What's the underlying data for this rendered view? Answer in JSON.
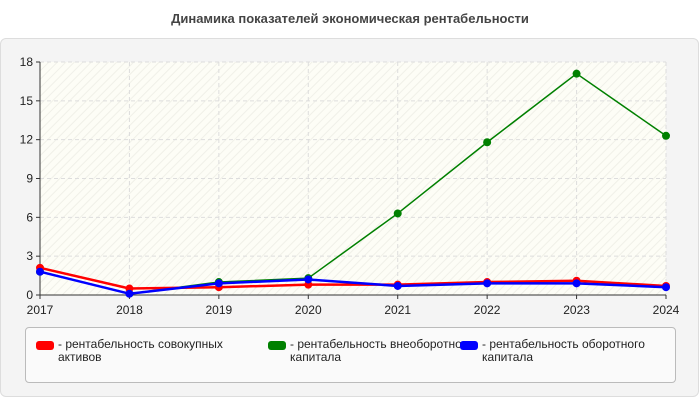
{
  "chart_data": {
    "type": "line",
    "title": "Динамика показателей экономическая рентабельности",
    "xlabel": "",
    "ylabel": "",
    "x": [
      "2017",
      "2018",
      "2019",
      "2020",
      "2021",
      "2022",
      "2023",
      "2024"
    ],
    "ylim": [
      0,
      18
    ],
    "yticks": [
      "0",
      "3",
      "6",
      "9",
      "12",
      "15",
      "18"
    ],
    "grid": true,
    "legend_position": "bottom",
    "series": [
      {
        "name": "- рентабельность совокупных активов",
        "color": "#ff0000",
        "values": [
          2.1,
          0.5,
          0.6,
          0.8,
          0.8,
          1.0,
          1.1,
          0.7
        ]
      },
      {
        "name": "- рентабельность внеоборотного капитала",
        "color": "#008000",
        "values": [
          1.8,
          0.1,
          1.0,
          1.3,
          6.3,
          11.8,
          17.1,
          12.3
        ]
      },
      {
        "name": "- рентабельность оборотного капитала",
        "color": "#0000ff",
        "values": [
          1.8,
          0.1,
          0.9,
          1.2,
          0.7,
          0.9,
          0.9,
          0.6
        ]
      }
    ]
  }
}
